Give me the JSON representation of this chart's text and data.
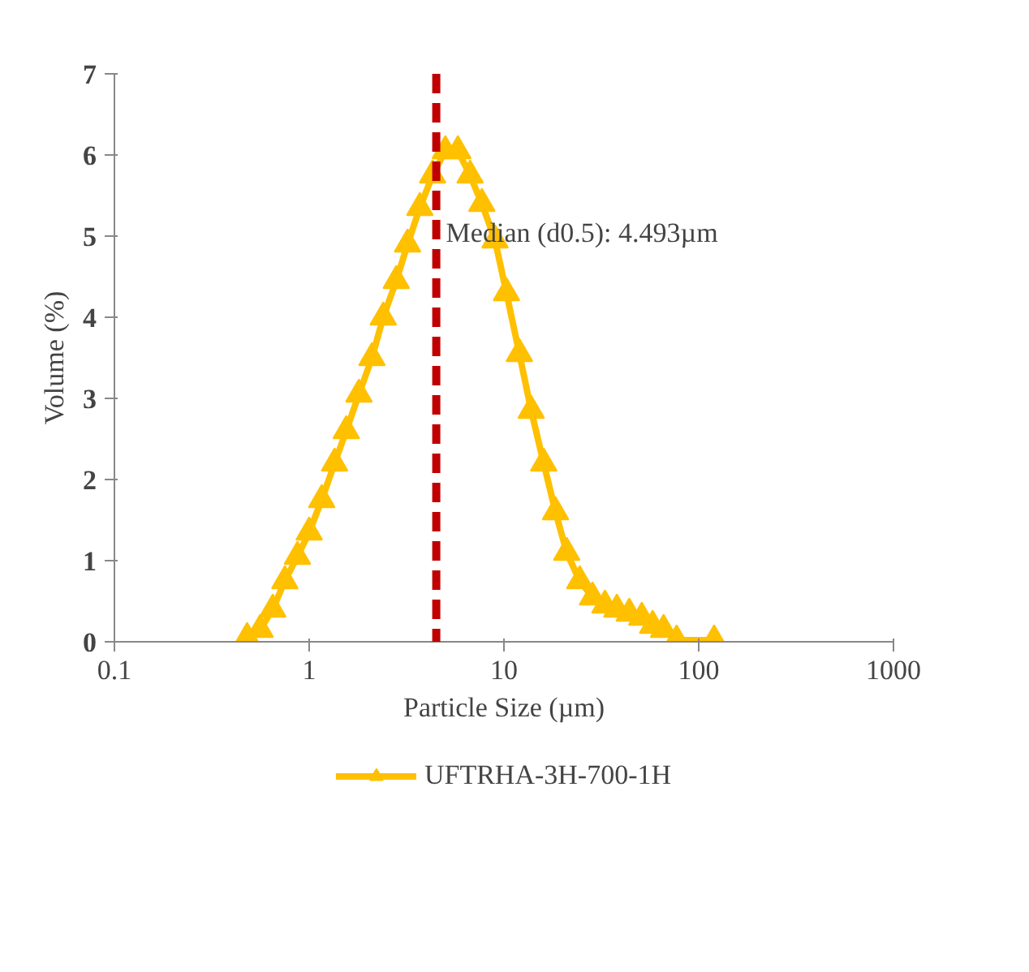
{
  "chart_data": {
    "type": "line",
    "xlabel": "Particle Size (µm)",
    "ylabel": "Volume (%)",
    "log": "x",
    "xlim": [
      0.1,
      1000
    ],
    "xticks": [
      0.1,
      1,
      10,
      100,
      1000
    ],
    "ylim": [
      0,
      7
    ],
    "yticks": [
      0,
      1,
      2,
      3,
      4,
      5,
      6,
      7
    ],
    "grid": false,
    "legend": "bottom",
    "marker": "triangle",
    "line_style": "solid",
    "series": [
      {
        "name": "UFTRHA-3H-700-1H",
        "color": "#ffc000",
        "x": [
          0.48,
          0.56,
          0.65,
          0.75,
          0.87,
          1.0,
          1.16,
          1.35,
          1.55,
          1.8,
          2.1,
          2.4,
          2.8,
          3.2,
          3.7,
          4.3,
          5.0,
          5.8,
          6.7,
          7.7,
          9.0,
          10.3,
          12,
          13.8,
          16,
          18.4,
          21,
          24.5,
          28.5,
          33,
          38,
          44,
          51,
          58,
          66,
          77,
          120
        ],
        "values": [
          0.05,
          0.15,
          0.4,
          0.75,
          1.05,
          1.35,
          1.75,
          2.2,
          2.6,
          3.05,
          3.5,
          4.0,
          4.45,
          4.9,
          5.35,
          5.75,
          6.05,
          6.05,
          5.75,
          5.4,
          4.95,
          4.3,
          3.55,
          2.85,
          2.2,
          1.6,
          1.1,
          0.75,
          0.55,
          0.45,
          0.4,
          0.35,
          0.3,
          0.2,
          0.15,
          0.02,
          0.02
        ]
      }
    ],
    "ref_lines": [
      {
        "axis": "x",
        "value": 4.493,
        "label": "Median (d0.5): 4.493µm",
        "color": "#c00000",
        "line_style": "dashed"
      }
    ]
  }
}
